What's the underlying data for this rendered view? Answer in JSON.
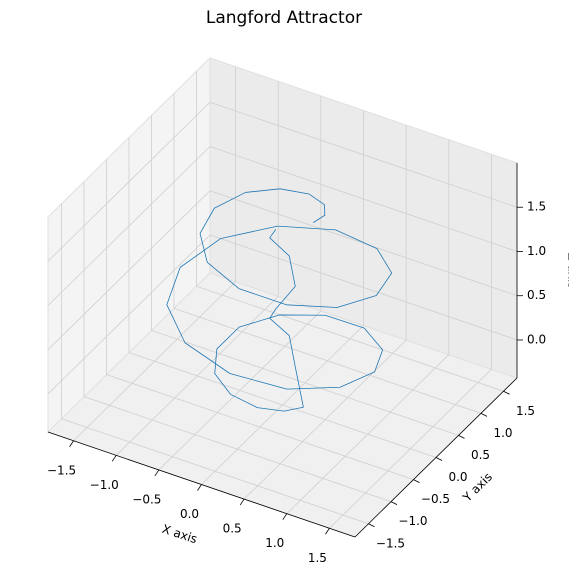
{
  "chart_data": {
    "type": "line3d",
    "title": "Langford Attractor",
    "xlabel": "X axis",
    "ylabel": "Y axis",
    "zlabel": "Z axis",
    "color": "#1f77b4",
    "grid": true,
    "xlim": [
      -1.8,
      1.8
    ],
    "ylim": [
      -1.8,
      1.8
    ],
    "zlim": [
      -0.43,
      2.0
    ],
    "xticks": [
      {
        "value": -1.5,
        "label": "−1.5"
      },
      {
        "value": -1.0,
        "label": "−1.0"
      },
      {
        "value": -0.5,
        "label": "−0.5"
      },
      {
        "value": 0,
        "label": "0.0"
      },
      0.5,
      {
        "value": 1.0,
        "label": "1.0"
      },
      1.5
    ],
    "yticks": [
      {
        "value": -1.5,
        "label": "−1.5"
      },
      {
        "value": -1.0,
        "label": "−1.0"
      },
      {
        "value": -0.5,
        "label": "−0.5"
      },
      {
        "value": 0,
        "label": "0.0"
      },
      0.5,
      {
        "value": 1.0,
        "label": "1.0"
      },
      1.5
    ],
    "zticks": [
      {
        "value": 0,
        "label": "0.0"
      },
      0.5,
      {
        "value": 1.0,
        "label": "1.0"
      },
      1.5
    ],
    "x": [
      0.36,
      0.38,
      0.26,
      0,
      -0.33,
      -0.63,
      -0.8,
      -0.74,
      -0.46,
      0,
      0.51,
      0.92,
      1.1,
      0.98,
      0.58,
      0,
      -0.6,
      -1.04,
      -1.2,
      -1.04,
      -0.6,
      0,
      0.58,
      0.97,
      1.08,
      0.9,
      0.5,
      0,
      -0.45,
      -0.73,
      -0.77,
      -0.61,
      -0.32,
      0,
      0.24,
      0.35,
      0.15,
      0,
      -0.15,
      0,
      0.15,
      0,
      -0.15,
      0
    ],
    "y": [
      0,
      0.22,
      0.44,
      0.59,
      0.57,
      0.37,
      0,
      -0.43,
      -0.8,
      -0.97,
      -0.88,
      -0.53,
      0,
      0.57,
      1.0,
      1.18,
      1.03,
      0.6,
      0,
      -0.6,
      -1.03,
      -1.17,
      -1.0,
      -0.56,
      0,
      0.52,
      0.87,
      0.95,
      0.78,
      0.42,
      0,
      -0.35,
      -0.55,
      -0.56,
      -0.42,
      -0.2,
      0,
      0.15,
      0,
      -0.15,
      0,
      0.15,
      0,
      -0.15
    ],
    "z": [
      1.75,
      1.73,
      1.7,
      1.66,
      1.62,
      1.58,
      1.53,
      1.48,
      1.43,
      1.37,
      1.31,
      1.24,
      1.17,
      1.1,
      1.03,
      0.96,
      0.88,
      0.81,
      0.73,
      0.66,
      0.59,
      0.51,
      0.44,
      0.37,
      0.3,
      0.23,
      0.17,
      0.11,
      0.05,
      0.0,
      -0.05,
      -0.1,
      -0.14,
      -0.18,
      -0.21,
      -0.24,
      0.05,
      0.28,
      0.5,
      0.73,
      0.96,
      1.18,
      1.41,
      1.63
    ]
  }
}
